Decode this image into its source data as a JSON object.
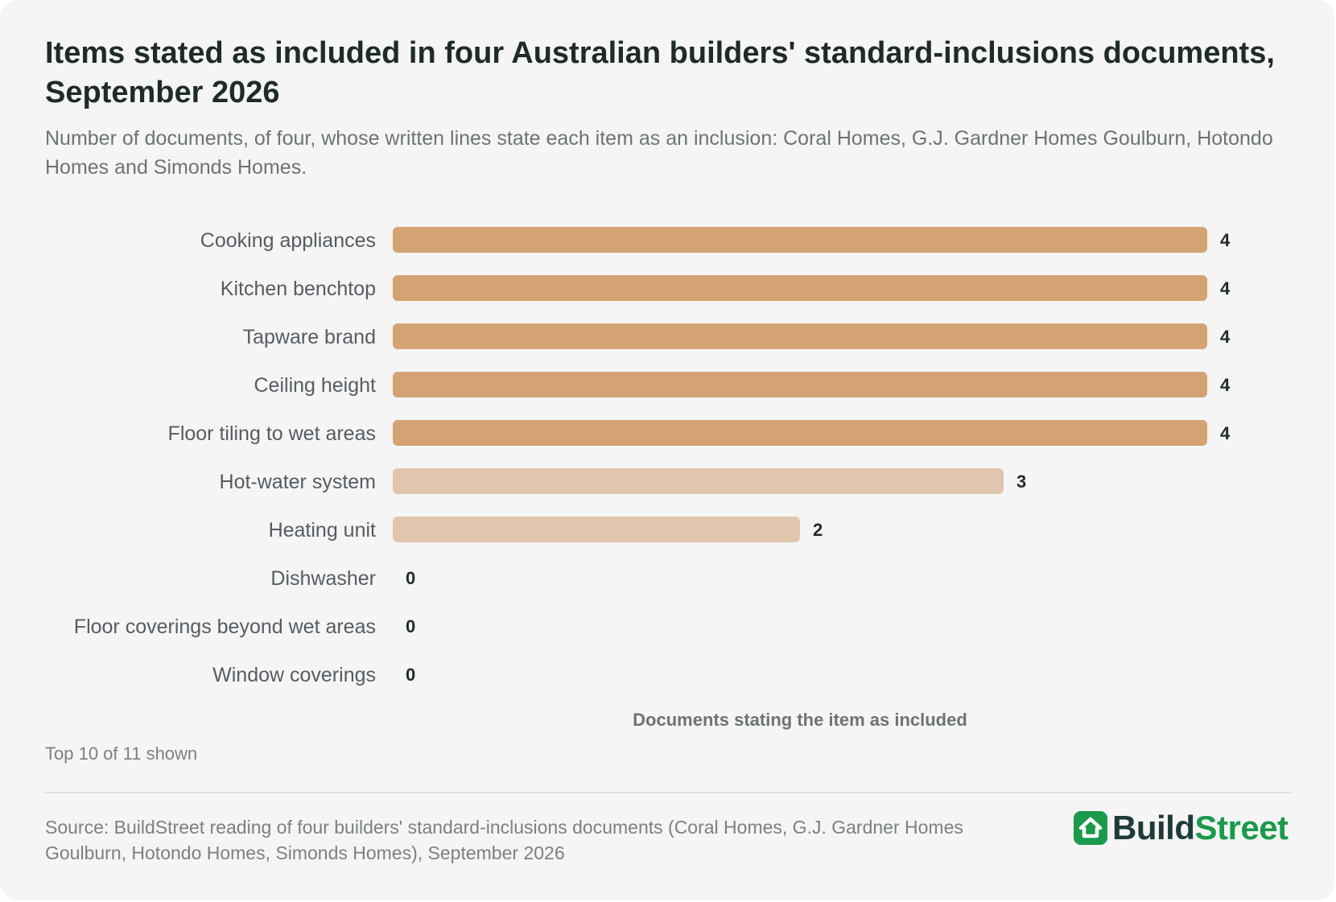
{
  "title": "Items stated as included in four Australian builders' standard-inclusions documents, September 2026",
  "subtitle": "Number of documents, of four, whose written lines state each item as an inclusion: Coral Homes, G.J. Gardner Homes Goulburn, Hotondo Homes and Simonds Homes.",
  "note": "Top 10 of 11 shown",
  "source": "Source: BuildStreet reading of four builders' standard-inclusions documents (Coral Homes, G.J. Gardner Homes Goulburn, Hotondo Homes, Simonds Homes), September 2026",
  "brand": {
    "part1": "Build",
    "part2": "Street",
    "icon": "house-icon"
  },
  "colors": {
    "bar_all": "#d4a373",
    "bar_partial": "#e0c6ad",
    "brand_green": "#1a9a4a",
    "brand_dark": "#1f3a37"
  },
  "chart_data": {
    "type": "bar",
    "orientation": "horizontal",
    "categories": [
      "Cooking appliances",
      "Kitchen benchtop",
      "Tapware brand",
      "Ceiling height",
      "Floor tiling to wet areas",
      "Hot-water system",
      "Heating unit",
      "Dishwasher",
      "Floor coverings beyond wet areas",
      "Window coverings"
    ],
    "values": [
      4,
      4,
      4,
      4,
      4,
      3,
      2,
      0,
      0,
      0
    ],
    "xlabel": "Documents stating the item as included",
    "xlim": [
      0,
      4
    ],
    "grid": false,
    "legend": "none"
  }
}
